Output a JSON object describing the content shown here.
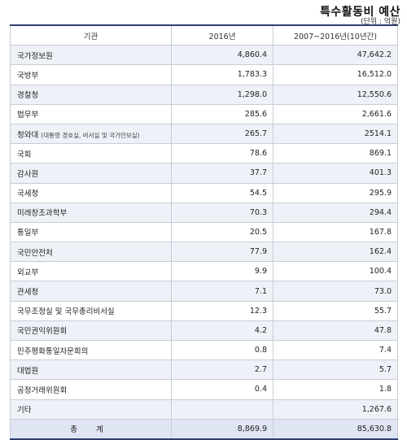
{
  "title": "특수활동비 예산",
  "unit": "(단위 : 억원)",
  "table": {
    "headers": [
      "기관",
      "2016년",
      "2007~2016년(10년간)"
    ],
    "rows": [
      {
        "org": "국가정보원",
        "note": "",
        "y2016": "4,860.4",
        "y10": "47,642.2"
      },
      {
        "org": "국방부",
        "note": "",
        "y2016": "1,783.3",
        "y10": "16,512.0"
      },
      {
        "org": "경찰청",
        "note": "",
        "y2016": "1,298.0",
        "y10": "12,550.6"
      },
      {
        "org": "법무부",
        "note": "",
        "y2016": "285.6",
        "y10": "2,661.6"
      },
      {
        "org": "청와대",
        "note": "(대통령 경호실, 비서실 및 국가안보실)",
        "y2016": "265.7",
        "y10": "2514.1"
      },
      {
        "org": "국회",
        "note": "",
        "y2016": "78.6",
        "y10": "869.1"
      },
      {
        "org": "감사원",
        "note": "",
        "y2016": "37.7",
        "y10": "401.3"
      },
      {
        "org": "국세청",
        "note": "",
        "y2016": "54.5",
        "y10": "295.9"
      },
      {
        "org": "미래창조과학부",
        "note": "",
        "y2016": "70.3",
        "y10": "294.4"
      },
      {
        "org": "통일부",
        "note": "",
        "y2016": "20.5",
        "y10": "167.8"
      },
      {
        "org": "국민안전처",
        "note": "",
        "y2016": "77.9",
        "y10": "162.4"
      },
      {
        "org": "외교부",
        "note": "",
        "y2016": "9.9",
        "y10": "100.4"
      },
      {
        "org": "관세청",
        "note": "",
        "y2016": "7.1",
        "y10": "73.0"
      },
      {
        "org": "국무조정실 및 국무총리비서실",
        "note": "",
        "y2016": "12.3",
        "y10": "55.7"
      },
      {
        "org": "국민권익위원회",
        "note": "",
        "y2016": "4.2",
        "y10": "47.8"
      },
      {
        "org": "민주평화통일자문회의",
        "note": "",
        "y2016": "0.8",
        "y10": "7.4"
      },
      {
        "org": "대법원",
        "note": "",
        "y2016": "2.7",
        "y10": "5.7"
      },
      {
        "org": "공정거래위원회",
        "note": "",
        "y2016": "0.4",
        "y10": "1.8"
      },
      {
        "org": "기타",
        "note": "",
        "y2016": "",
        "y10": "1,267.6"
      }
    ],
    "total": {
      "label": "총 계",
      "y2016": "8,869.9",
      "y10": "85,630.8"
    }
  }
}
